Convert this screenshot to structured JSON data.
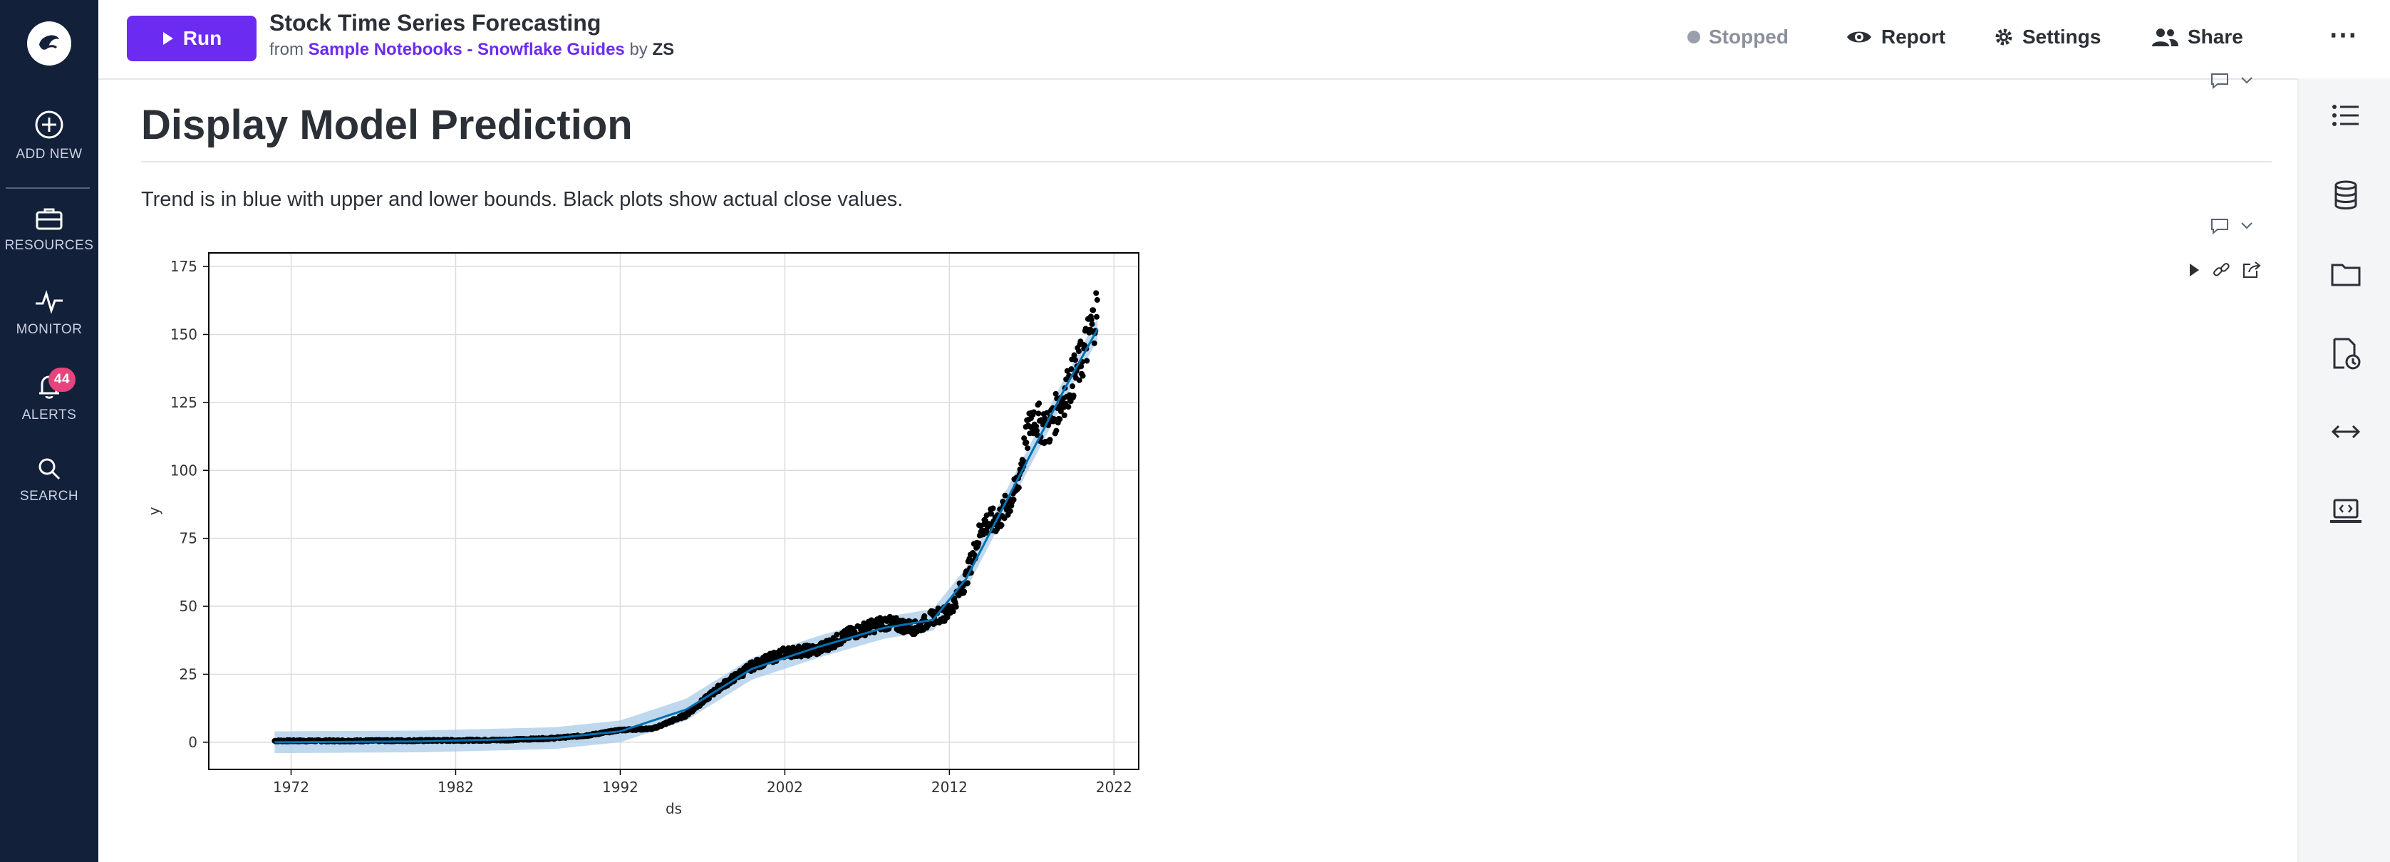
{
  "nav": {
    "add_new": "ADD NEW",
    "resources": "RESOURCES",
    "monitor": "MONITOR",
    "alerts": "ALERTS",
    "alerts_badge": "44",
    "search": "SEARCH"
  },
  "header": {
    "run_label": "Run",
    "title": "Stock Time Series Forecasting",
    "from_label": "from",
    "source_link": "Sample Notebooks - Snowflake Guides",
    "by_label": "by",
    "author": "ZS",
    "status": "Stopped",
    "report": "Report",
    "settings": "Settings",
    "share": "Share",
    "more": "⋯"
  },
  "content": {
    "heading": "Display Model Prediction",
    "description": "Trend is in blue with upper and lower bounds. Black plots show actual close values."
  },
  "colors": {
    "nav_bg": "#13203a",
    "accent": "#6c2bf0",
    "badge": "#e8437c",
    "trend": "#0072b2",
    "band": "#a9cbe8",
    "actual": "#000000"
  },
  "chart_data": {
    "type": "line",
    "xlabel": "ds",
    "ylabel": "y",
    "xlim": [
      1967,
      2023.5
    ],
    "ylim": [
      -10,
      180
    ],
    "x_ticks": [
      1972,
      1982,
      1992,
      2002,
      2012,
      2022
    ],
    "y_ticks": [
      0,
      25,
      50,
      75,
      100,
      125,
      150,
      175
    ],
    "grid": true,
    "series": [
      {
        "role": "actual close (black points)",
        "x": [
          1971,
          1975,
          1980,
          1985,
          1988,
          1990,
          1992,
          1994,
          1996,
          1998,
          2000,
          2002,
          2004,
          2006,
          2008,
          2010,
          2011,
          2012,
          2013,
          2014,
          2015,
          2016,
          2017,
          2018,
          2019,
          2020,
          2021
        ],
        "values": [
          0.5,
          0.5,
          0.6,
          0.8,
          1.5,
          2.5,
          4.5,
          5.0,
          10,
          20,
          28,
          33,
          34,
          40,
          44,
          42,
          46,
          48,
          60,
          80,
          82,
          92,
          120,
          115,
          128,
          140,
          160
        ]
      },
      {
        "role": "trend (blue line)",
        "x": [
          1971,
          1980,
          1988,
          1992,
          1996,
          2000,
          2004,
          2008,
          2011,
          2013,
          2016,
          2019,
          2021
        ],
        "values": [
          0,
          0.3,
          1.5,
          4,
          12,
          27,
          35,
          42,
          45,
          60,
          95,
          130,
          152
        ]
      }
    ],
    "band_halfwidth": 4
  }
}
